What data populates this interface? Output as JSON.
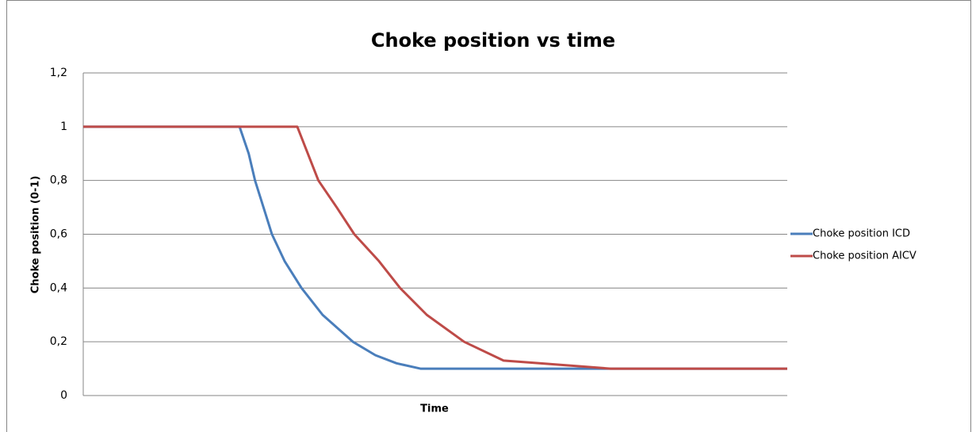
{
  "chart_data": {
    "type": "line",
    "title": "Choke position vs time",
    "x_label": "Time",
    "y_label": "Choke position (0-1)",
    "xlim": [
      0,
      100
    ],
    "ylim": [
      0,
      1.2
    ],
    "yticks": [
      0,
      {
        "value": 0.2,
        "label": "0,2"
      },
      {
        "value": 0.4,
        "label": "0,4"
      },
      {
        "value": 0.6,
        "label": "0,6"
      },
      {
        "value": 0.8,
        "label": "0,8"
      },
      1,
      {
        "value": 1.2,
        "label": "1,2"
      }
    ],
    "grid": true,
    "legend": "right",
    "series": [
      {
        "name": "Choke position ICD",
        "color": "#4a7ebb",
        "x": [
          0,
          22.2,
          23.5,
          24.4,
          25.6,
          26.8,
          28.6,
          31,
          34,
          38.3,
          41.5,
          44.5,
          47.9,
          100
        ],
        "values": [
          1,
          1,
          0.9,
          0.8,
          0.7,
          0.6,
          0.5,
          0.4,
          0.3,
          0.2,
          0.15,
          0.12,
          0.1,
          0.1
        ]
      },
      {
        "name": "Choke position AICV",
        "color": "#be4b48",
        "x": [
          0,
          30.4,
          33.4,
          36.0,
          38.5,
          42.0,
          45.0,
          48.8,
          54.1,
          59.7,
          64.8,
          74.9,
          100
        ],
        "values": [
          1,
          1,
          0.8,
          0.7,
          0.6,
          0.5,
          0.4,
          0.3,
          0.2,
          0.13,
          0.12,
          0.1,
          0.1
        ]
      }
    ]
  }
}
